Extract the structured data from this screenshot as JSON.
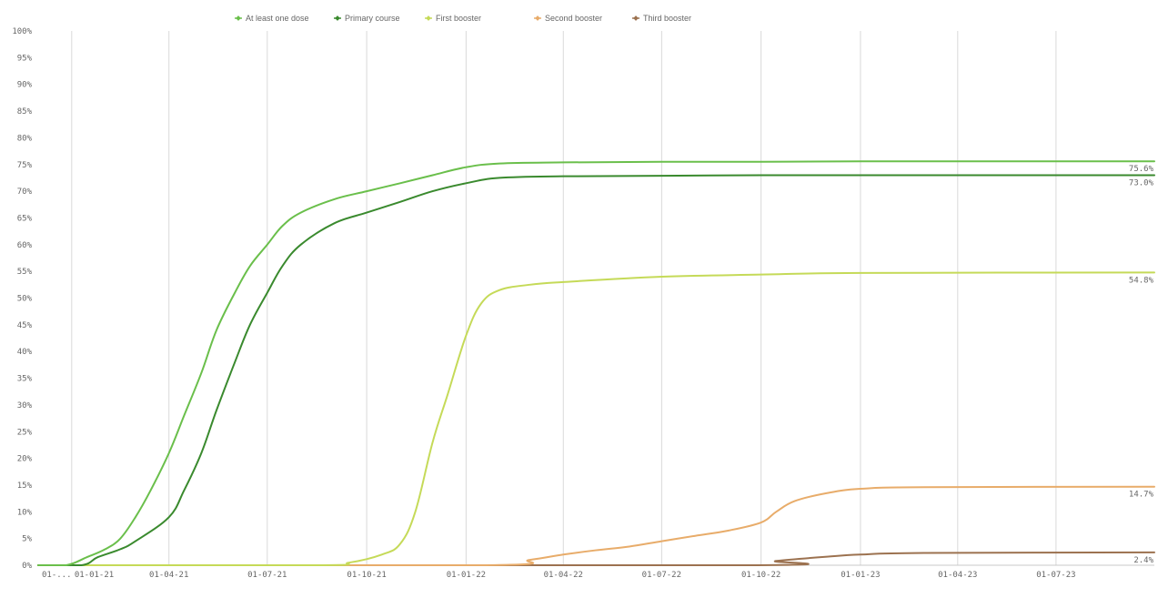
{
  "chart_data": {
    "type": "line",
    "ylim": [
      0,
      100
    ],
    "y_ticks": [
      "0%",
      "5%",
      "10%",
      "15%",
      "20%",
      "25%",
      "30%",
      "35%",
      "40%",
      "45%",
      "50%",
      "55%",
      "60%",
      "65%",
      "70%",
      "75%",
      "80%",
      "85%",
      "90%",
      "95%",
      "100%"
    ],
    "x_range": [
      "2020-12-01",
      "2023-09-30"
    ],
    "x_ticks": [
      {
        "date": "2020-12-01",
        "label": "01-..."
      },
      {
        "date": "2021-01-01",
        "label": "01-01-21"
      },
      {
        "date": "2021-04-01",
        "label": "01-04-21"
      },
      {
        "date": "2021-07-01",
        "label": "01-07-21"
      },
      {
        "date": "2021-10-01",
        "label": "01-10-21"
      },
      {
        "date": "2022-01-01",
        "label": "01-01-22"
      },
      {
        "date": "2022-04-01",
        "label": "01-04-22"
      },
      {
        "date": "2022-07-01",
        "label": "01-07-22"
      },
      {
        "date": "2022-10-01",
        "label": "01-10-22"
      },
      {
        "date": "2023-01-01",
        "label": "01-01-23"
      },
      {
        "date": "2023-04-01",
        "label": "01-04-23"
      },
      {
        "date": "2023-07-01",
        "label": "01-07-23"
      }
    ],
    "grid": "vertical",
    "legend_position": "top",
    "series": [
      {
        "name": "At least one dose",
        "color": "#6abf4b",
        "end_label": "75.6%",
        "points": [
          [
            "2020-12-01",
            0
          ],
          [
            "2020-12-27",
            0
          ],
          [
            "2021-01-15",
            1.5
          ],
          [
            "2021-02-01",
            3
          ],
          [
            "2021-02-15",
            5
          ],
          [
            "2021-03-01",
            9
          ],
          [
            "2021-03-15",
            14
          ],
          [
            "2021-04-01",
            21
          ],
          [
            "2021-04-15",
            28
          ],
          [
            "2021-05-01",
            36
          ],
          [
            "2021-05-15",
            44
          ],
          [
            "2021-06-01",
            51
          ],
          [
            "2021-06-15",
            56
          ],
          [
            "2021-07-01",
            60
          ],
          [
            "2021-07-15",
            63.5
          ],
          [
            "2021-08-01",
            66
          ],
          [
            "2021-09-01",
            68.5
          ],
          [
            "2021-10-01",
            70
          ],
          [
            "2021-11-01",
            71.5
          ],
          [
            "2021-12-01",
            73
          ],
          [
            "2022-01-01",
            74.5
          ],
          [
            "2022-02-01",
            75.2
          ],
          [
            "2022-04-01",
            75.4
          ],
          [
            "2022-07-01",
            75.5
          ],
          [
            "2022-10-01",
            75.5
          ],
          [
            "2023-01-01",
            75.6
          ],
          [
            "2023-09-30",
            75.6
          ]
        ]
      },
      {
        "name": "Primary course",
        "color": "#3a8a2e",
        "end_label": "73.0%",
        "points": [
          [
            "2020-12-01",
            0
          ],
          [
            "2021-01-10",
            0
          ],
          [
            "2021-01-25",
            1.5
          ],
          [
            "2021-02-15",
            3
          ],
          [
            "2021-03-01",
            4.5
          ],
          [
            "2021-04-01",
            9
          ],
          [
            "2021-04-15",
            14
          ],
          [
            "2021-05-01",
            21
          ],
          [
            "2021-05-15",
            29
          ],
          [
            "2021-06-01",
            38
          ],
          [
            "2021-06-15",
            45
          ],
          [
            "2021-07-01",
            51
          ],
          [
            "2021-07-15",
            56
          ],
          [
            "2021-08-01",
            60
          ],
          [
            "2021-09-01",
            64
          ],
          [
            "2021-10-01",
            66
          ],
          [
            "2021-11-01",
            68
          ],
          [
            "2021-12-01",
            70
          ],
          [
            "2022-01-01",
            71.5
          ],
          [
            "2022-02-01",
            72.5
          ],
          [
            "2022-04-01",
            72.8
          ],
          [
            "2022-07-01",
            72.9
          ],
          [
            "2022-10-01",
            73.0
          ],
          [
            "2023-01-01",
            73.0
          ],
          [
            "2023-09-30",
            73.0
          ]
        ]
      },
      {
        "name": "First booster",
        "color": "#c5da58",
        "end_label": "54.8%",
        "points": [
          [
            "2020-12-01",
            0
          ],
          [
            "2021-08-15",
            0
          ],
          [
            "2021-09-15",
            0.5
          ],
          [
            "2021-10-15",
            2
          ],
          [
            "2021-11-01",
            4
          ],
          [
            "2021-11-15",
            10
          ],
          [
            "2021-12-01",
            23
          ],
          [
            "2021-12-15",
            32
          ],
          [
            "2022-01-01",
            43
          ],
          [
            "2022-01-15",
            49
          ],
          [
            "2022-02-01",
            51.5
          ],
          [
            "2022-03-01",
            52.5
          ],
          [
            "2022-04-01",
            53
          ],
          [
            "2022-07-01",
            54
          ],
          [
            "2022-10-01",
            54.4
          ],
          [
            "2023-01-01",
            54.7
          ],
          [
            "2023-09-30",
            54.8
          ]
        ]
      },
      {
        "name": "Second booster",
        "color": "#e8ac6a",
        "end_label": "14.7%",
        "points": [
          [
            "2020-12-01",
            0
          ],
          [
            "2022-01-15",
            0
          ],
          [
            "2022-03-01",
            1
          ],
          [
            "2022-04-01",
            2
          ],
          [
            "2022-05-01",
            2.8
          ],
          [
            "2022-06-01",
            3.5
          ],
          [
            "2022-07-01",
            4.5
          ],
          [
            "2022-08-01",
            5.5
          ],
          [
            "2022-09-01",
            6.5
          ],
          [
            "2022-10-01",
            8
          ],
          [
            "2022-10-15",
            10
          ],
          [
            "2022-11-01",
            12
          ],
          [
            "2022-12-01",
            13.5
          ],
          [
            "2023-01-01",
            14.3
          ],
          [
            "2023-03-01",
            14.6
          ],
          [
            "2023-09-30",
            14.7
          ]
        ]
      },
      {
        "name": "Third booster",
        "color": "#9c7250",
        "end_label": "2.4%",
        "points": [
          [
            "2020-12-01",
            0
          ],
          [
            "2022-09-15",
            0
          ],
          [
            "2022-10-15",
            0.8
          ],
          [
            "2022-12-01",
            1.6
          ],
          [
            "2023-01-01",
            2.0
          ],
          [
            "2023-03-01",
            2.3
          ],
          [
            "2023-09-30",
            2.4
          ]
        ]
      }
    ]
  }
}
